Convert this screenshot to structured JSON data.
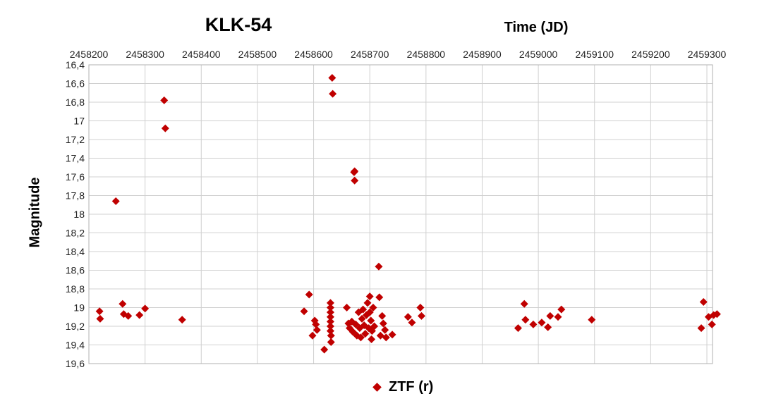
{
  "chart_data": {
    "type": "scatter",
    "title": "KLK-54",
    "xlabel": "Time (JD)",
    "ylabel": "Magnitude",
    "xlim": [
      2458200,
      2459310
    ],
    "ylim": [
      19.6,
      16.4
    ],
    "y_inverted": true,
    "x_ticks": [
      2458200,
      2458300,
      2458400,
      2458500,
      2458600,
      2458700,
      2458800,
      2458900,
      2459000,
      2459100,
      2459200,
      2459300
    ],
    "y_ticks": [
      "16,4",
      "16,6",
      "16,8",
      "17",
      "17,2",
      "17,4",
      "17,6",
      "17,8",
      "18",
      "18,2",
      "18,4",
      "18,6",
      "18,8",
      "19",
      "19,2",
      "19,4",
      "19,6"
    ],
    "x_axis_position": "top",
    "grid": true,
    "legend_position": "bottom",
    "colors": {
      "marker": "#c00000",
      "grid": "#d0d0d0"
    },
    "series": [
      {
        "name": "ZTF (r)",
        "marker": "diamond",
        "points": [
          [
            2458219,
            19.04
          ],
          [
            2458220,
            19.12
          ],
          [
            2458248,
            17.86
          ],
          [
            2458260,
            18.96
          ],
          [
            2458262,
            19.07
          ],
          [
            2458270,
            19.09
          ],
          [
            2458290,
            19.08
          ],
          [
            2458300,
            19.01
          ],
          [
            2458334,
            16.78
          ],
          [
            2458336,
            17.08
          ],
          [
            2458366,
            19.13
          ],
          [
            2458583,
            19.04
          ],
          [
            2458592,
            18.86
          ],
          [
            2458598,
            19.3
          ],
          [
            2458602,
            19.14
          ],
          [
            2458604,
            19.18
          ],
          [
            2458606,
            19.24
          ],
          [
            2458619,
            19.45
          ],
          [
            2458630,
            18.95
          ],
          [
            2458630,
            19.0
          ],
          [
            2458630,
            19.05
          ],
          [
            2458630,
            19.1
          ],
          [
            2458630,
            19.15
          ],
          [
            2458630,
            19.2
          ],
          [
            2458630,
            19.25
          ],
          [
            2458631,
            19.3
          ],
          [
            2458631,
            19.37
          ],
          [
            2458633,
            16.54
          ],
          [
            2458634,
            16.71
          ],
          [
            2458659,
            19.0
          ],
          [
            2458662,
            19.17
          ],
          [
            2458664,
            19.22
          ],
          [
            2458668,
            19.15
          ],
          [
            2458670,
            19.26
          ],
          [
            2458672,
            17.55
          ],
          [
            2458673,
            17.54
          ],
          [
            2458673,
            17.64
          ],
          [
            2458675,
            19.18
          ],
          [
            2458677,
            19.3
          ],
          [
            2458680,
            19.05
          ],
          [
            2458682,
            19.22
          ],
          [
            2458684,
            19.32
          ],
          [
            2458686,
            19.12
          ],
          [
            2458688,
            19.02
          ],
          [
            2458690,
            19.19
          ],
          [
            2458692,
            19.28
          ],
          [
            2458694,
            19.08
          ],
          [
            2458696,
            18.95
          ],
          [
            2458698,
            19.22
          ],
          [
            2458700,
            18.88
          ],
          [
            2458700,
            19.05
          ],
          [
            2458702,
            19.14
          ],
          [
            2458703,
            19.34
          ],
          [
            2458704,
            19.25
          ],
          [
            2458706,
            19.0
          ],
          [
            2458708,
            19.2
          ],
          [
            2458716,
            18.56
          ],
          [
            2458717,
            18.89
          ],
          [
            2458719,
            19.3
          ],
          [
            2458722,
            19.09
          ],
          [
            2458724,
            19.17
          ],
          [
            2458727,
            19.24
          ],
          [
            2458729,
            19.32
          ],
          [
            2458740,
            19.29
          ],
          [
            2458768,
            19.1
          ],
          [
            2458775,
            19.16
          ],
          [
            2458790,
            19.0
          ],
          [
            2458792,
            19.09
          ],
          [
            2458964,
            19.22
          ],
          [
            2458975,
            18.96
          ],
          [
            2458977,
            19.13
          ],
          [
            2458991,
            19.18
          ],
          [
            2459006,
            19.16
          ],
          [
            2459017,
            19.21
          ],
          [
            2459021,
            19.09
          ],
          [
            2459035,
            19.1
          ],
          [
            2459041,
            19.02
          ],
          [
            2459095,
            19.13
          ],
          [
            2459290,
            19.22
          ],
          [
            2459294,
            18.94
          ],
          [
            2459303,
            19.1
          ],
          [
            2459309,
            19.18
          ],
          [
            2459312,
            19.08
          ],
          [
            2459318,
            19.07
          ]
        ]
      }
    ]
  }
}
